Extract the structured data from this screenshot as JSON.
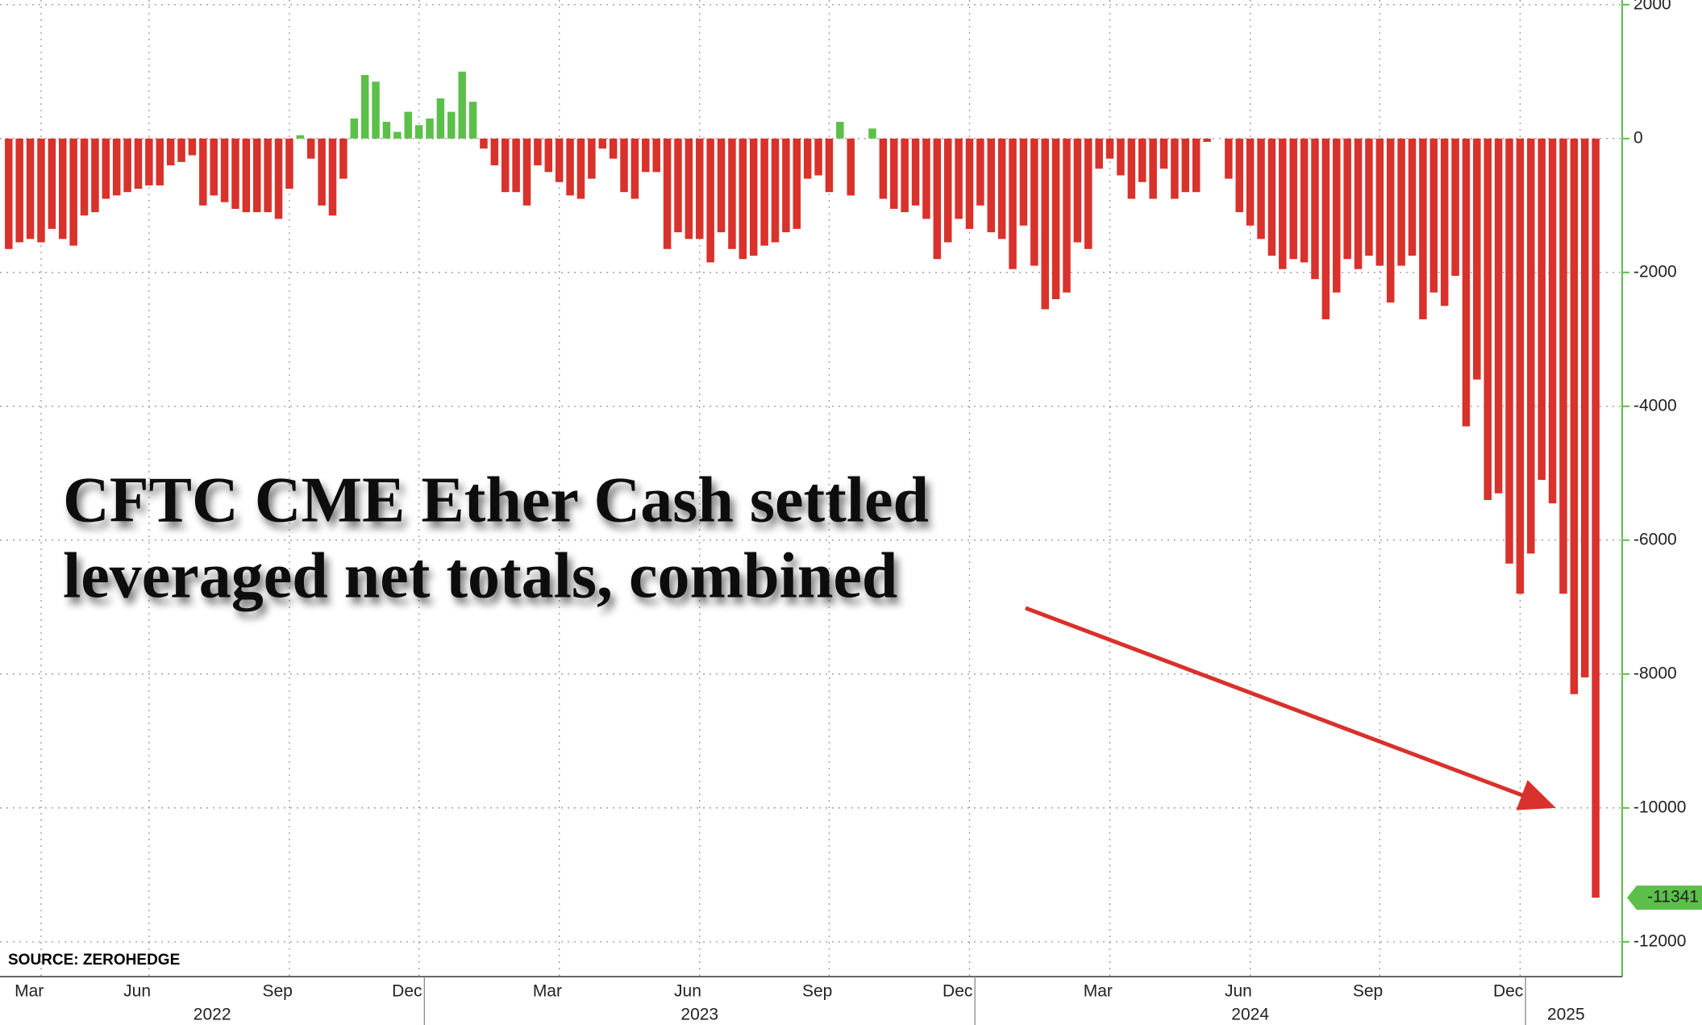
{
  "chart_data": {
    "type": "bar",
    "annotation": [
      "CFTC CME Ether Cash settled",
      "leveraged net totals, combined"
    ],
    "source": "SOURCE: ZEROHEDGE",
    "categories": [
      null,
      "Mar",
      null,
      null,
      null,
      null,
      null,
      null,
      null,
      null,
      null,
      "Jun",
      null,
      null,
      null,
      null,
      null,
      null,
      null,
      null,
      null,
      null,
      null,
      null,
      "Sep",
      null,
      null,
      null,
      null,
      null,
      null,
      null,
      null,
      null,
      null,
      null,
      "Dec",
      null,
      null,
      null,
      null,
      null,
      null,
      null,
      null,
      null,
      null,
      null,
      null,
      "Mar",
      null,
      null,
      null,
      null,
      null,
      null,
      null,
      null,
      null,
      null,
      null,
      null,
      "Jun",
      null,
      null,
      null,
      null,
      null,
      null,
      null,
      null,
      null,
      null,
      null,
      "Sep",
      null,
      null,
      null,
      null,
      null,
      null,
      null,
      null,
      null,
      null,
      null,
      null,
      "Dec",
      null,
      null,
      null,
      null,
      null,
      null,
      null,
      null,
      null,
      null,
      null,
      null,
      "Mar",
      null,
      null,
      null,
      null,
      null,
      null,
      null,
      null,
      null,
      null,
      null,
      null,
      "Jun",
      null,
      null,
      null,
      null,
      null,
      null,
      null,
      null,
      null,
      null,
      null,
      "Sep",
      null,
      null,
      null,
      null,
      null,
      null,
      null,
      null,
      null,
      null,
      null,
      null,
      "Dec",
      null,
      null,
      null,
      null,
      null,
      null,
      null,
      null,
      null
    ],
    "years": [
      "2022",
      "2023",
      "2024",
      "2025"
    ],
    "values": [
      -1650,
      -1550,
      -1500,
      -1550,
      -1350,
      -1500,
      -1600,
      -1150,
      -1100,
      -900,
      -850,
      -800,
      -750,
      -700,
      -700,
      -400,
      -350,
      -250,
      -1000,
      -850,
      -950,
      -1050,
      -1100,
      -1100,
      -1100,
      -1200,
      -750,
      50,
      -300,
      -1000,
      -1150,
      -600,
      300,
      950,
      850,
      250,
      100,
      400,
      200,
      300,
      600,
      400,
      1000,
      550,
      -150,
      -400,
      -800,
      -800,
      -1000,
      -400,
      -500,
      -650,
      -850,
      -900,
      -600,
      -150,
      -300,
      -800,
      -900,
      -500,
      -500,
      -1650,
      -1400,
      -1500,
      -1500,
      -1850,
      -1400,
      -1650,
      -1800,
      -1750,
      -1600,
      -1550,
      -1400,
      -1350,
      -600,
      -550,
      -800,
      250,
      -850,
      0,
      150,
      -900,
      -1050,
      -1100,
      -1000,
      -1200,
      -1800,
      -1550,
      -1200,
      -1350,
      -1000,
      -1400,
      -1500,
      -1950,
      -1300,
      -1900,
      -2550,
      -2400,
      -2300,
      -1550,
      -1650,
      -450,
      -300,
      -550,
      -900,
      -650,
      -900,
      -450,
      -900,
      -800,
      -800,
      -50,
      0,
      -600,
      -1100,
      -1300,
      -1500,
      -1750,
      -1950,
      -1800,
      -1850,
      -2100,
      -2700,
      -2300,
      -1800,
      -1950,
      -1750,
      -1900,
      -2450,
      -1900,
      -1750,
      -2700,
      -2300,
      -2500,
      -2050,
      -4300,
      -3600,
      -5400,
      -5300,
      -6350,
      -6800,
      -6200,
      -5100,
      -5450,
      -6800,
      -8300,
      -8050,
      -11341
    ],
    "positive_color": "#5cbf4a",
    "negative_color": "#d9312b",
    "ylim": [
      -12520,
      2070
    ],
    "yticks": [
      2000,
      0,
      -2000,
      -4000,
      -6000,
      -8000,
      -10000,
      -12000
    ],
    "grid": true
  }
}
